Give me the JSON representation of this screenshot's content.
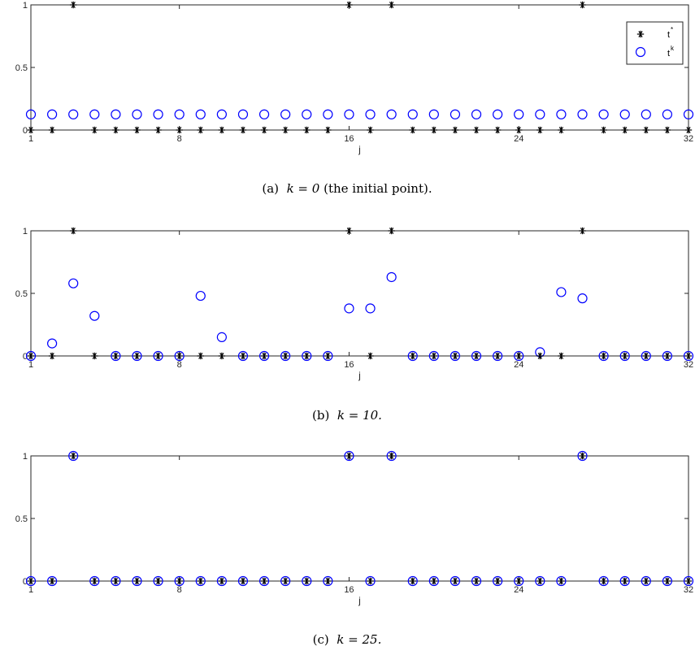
{
  "legend": {
    "star_label": "t",
    "star_sup": "*",
    "circle_label": "t",
    "circle_sup": "k"
  },
  "colors": {
    "star": "#000000",
    "circle": "#0000ff",
    "axis": "#262626"
  },
  "icons": {
    "star_marker": "asterisk-marker-icon",
    "circle_marker": "open-circle-marker-icon"
  },
  "chart_data": [
    {
      "type": "scatter",
      "panel": "a",
      "caption_prefix": "(a)",
      "caption_math": "k = 0",
      "caption_suffix": "(the initial point).",
      "xlabel": "j",
      "ylabel": "",
      "xlim": [
        1,
        32
      ],
      "ylim": [
        0,
        1
      ],
      "xticks": [
        1,
        8,
        16,
        24,
        32
      ],
      "yticks": [
        0,
        0.5,
        1
      ],
      "yticklabels": [
        "0",
        "0.5",
        "1"
      ],
      "grid": false,
      "legend_position": "top-right",
      "series": [
        {
          "name": "t*",
          "marker": "asterisk",
          "x": [
            1,
            2,
            3,
            4,
            5,
            6,
            7,
            8,
            9,
            10,
            11,
            12,
            13,
            14,
            15,
            16,
            17,
            18,
            19,
            20,
            21,
            22,
            23,
            24,
            25,
            26,
            27,
            28,
            29,
            30,
            31,
            32
          ],
          "y": [
            0,
            0,
            1,
            0,
            0,
            0,
            0,
            0,
            0,
            0,
            0,
            0,
            0,
            0,
            0,
            1,
            0,
            1,
            0,
            0,
            0,
            0,
            0,
            0,
            0,
            0,
            1,
            0,
            0,
            0,
            0,
            0
          ]
        },
        {
          "name": "tk",
          "marker": "circle",
          "x": [
            1,
            2,
            3,
            4,
            5,
            6,
            7,
            8,
            9,
            10,
            11,
            12,
            13,
            14,
            15,
            16,
            17,
            18,
            19,
            20,
            21,
            22,
            23,
            24,
            25,
            26,
            27,
            28,
            29,
            30,
            31,
            32
          ],
          "y": [
            0.125,
            0.125,
            0.125,
            0.125,
            0.125,
            0.125,
            0.125,
            0.125,
            0.125,
            0.125,
            0.125,
            0.125,
            0.125,
            0.125,
            0.125,
            0.125,
            0.125,
            0.125,
            0.125,
            0.125,
            0.125,
            0.125,
            0.125,
            0.125,
            0.125,
            0.125,
            0.125,
            0.125,
            0.125,
            0.125,
            0.125,
            0.125
          ]
        }
      ]
    },
    {
      "type": "scatter",
      "panel": "b",
      "caption_prefix": "(b)",
      "caption_math": "k = 10.",
      "caption_suffix": "",
      "xlabel": "j",
      "ylabel": "",
      "xlim": [
        1,
        32
      ],
      "ylim": [
        0,
        1
      ],
      "xticks": [
        1,
        8,
        16,
        24,
        32
      ],
      "yticks": [
        0,
        0.5,
        1
      ],
      "yticklabels": [
        "0",
        "0.5",
        "1"
      ],
      "grid": false,
      "legend_position": "none",
      "series": [
        {
          "name": "t*",
          "marker": "asterisk",
          "x": [
            1,
            2,
            3,
            4,
            5,
            6,
            7,
            8,
            9,
            10,
            11,
            12,
            13,
            14,
            15,
            16,
            17,
            18,
            19,
            20,
            21,
            22,
            23,
            24,
            25,
            26,
            27,
            28,
            29,
            30,
            31,
            32
          ],
          "y": [
            0,
            0,
            1,
            0,
            0,
            0,
            0,
            0,
            0,
            0,
            0,
            0,
            0,
            0,
            0,
            1,
            0,
            1,
            0,
            0,
            0,
            0,
            0,
            0,
            0,
            0,
            1,
            0,
            0,
            0,
            0,
            0
          ]
        },
        {
          "name": "tk",
          "marker": "circle",
          "x": [
            1,
            2,
            3,
            4,
            5,
            6,
            7,
            8,
            9,
            10,
            11,
            12,
            13,
            14,
            15,
            16,
            17,
            18,
            19,
            20,
            21,
            22,
            23,
            24,
            25,
            26,
            27,
            28,
            29,
            30,
            31,
            32
          ],
          "y": [
            0,
            0.1,
            0.58,
            0.32,
            0,
            0,
            0,
            0,
            0.48,
            0.15,
            0,
            0,
            0,
            0,
            0,
            0.38,
            0.38,
            0.63,
            0,
            0,
            0,
            0,
            0,
            0,
            0.03,
            0.51,
            0.46,
            0,
            0,
            0,
            0,
            0
          ]
        }
      ]
    },
    {
      "type": "scatter",
      "panel": "c",
      "caption_prefix": "(c)",
      "caption_math": "k = 25.",
      "caption_suffix": "",
      "xlabel": "j",
      "ylabel": "",
      "xlim": [
        1,
        32
      ],
      "ylim": [
        0,
        1
      ],
      "xticks": [
        1,
        8,
        16,
        24,
        32
      ],
      "yticks": [
        0,
        0.5,
        1
      ],
      "yticklabels": [
        "0",
        "0.5",
        "1"
      ],
      "grid": false,
      "legend_position": "none",
      "series": [
        {
          "name": "t*",
          "marker": "asterisk",
          "x": [
            1,
            2,
            3,
            4,
            5,
            6,
            7,
            8,
            9,
            10,
            11,
            12,
            13,
            14,
            15,
            16,
            17,
            18,
            19,
            20,
            21,
            22,
            23,
            24,
            25,
            26,
            27,
            28,
            29,
            30,
            31,
            32
          ],
          "y": [
            0,
            0,
            1,
            0,
            0,
            0,
            0,
            0,
            0,
            0,
            0,
            0,
            0,
            0,
            0,
            1,
            0,
            1,
            0,
            0,
            0,
            0,
            0,
            0,
            0,
            0,
            1,
            0,
            0,
            0,
            0,
            0
          ]
        },
        {
          "name": "tk",
          "marker": "circle",
          "x": [
            1,
            2,
            3,
            4,
            5,
            6,
            7,
            8,
            9,
            10,
            11,
            12,
            13,
            14,
            15,
            16,
            17,
            18,
            19,
            20,
            21,
            22,
            23,
            24,
            25,
            26,
            27,
            28,
            29,
            30,
            31,
            32
          ],
          "y": [
            0,
            0,
            1,
            0,
            0,
            0,
            0,
            0,
            0,
            0,
            0,
            0,
            0,
            0,
            0,
            1,
            0,
            1,
            0,
            0,
            0,
            0,
            0,
            0,
            0,
            0,
            1,
            0,
            0,
            0,
            0,
            0
          ]
        }
      ]
    }
  ]
}
